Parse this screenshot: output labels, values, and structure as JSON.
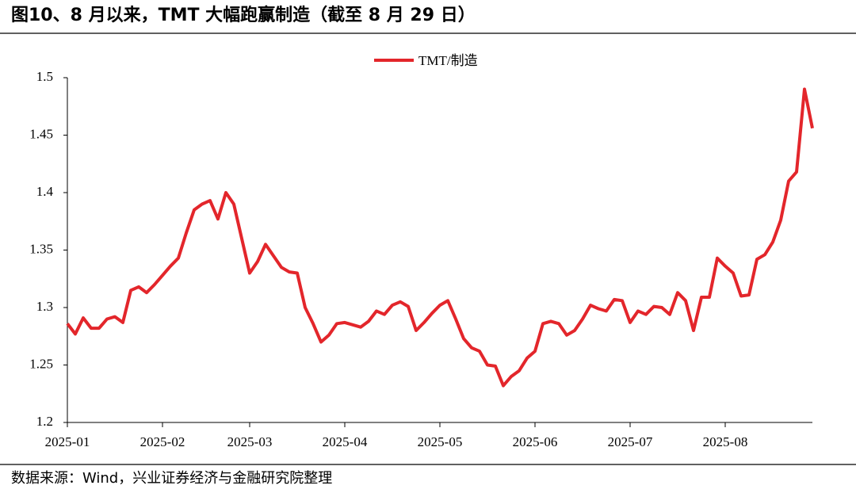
{
  "chart_data": {
    "type": "line",
    "title": "图10、8 月以来，TMT 大幅跑赢制造（截至 8 月 29 日）",
    "source": "数据来源：Wind，兴业证券经济与金融研究院整理",
    "categories": [
      "2025-01",
      null,
      null,
      null,
      null,
      null,
      null,
      null,
      null,
      null,
      null,
      null,
      "2025-02",
      null,
      null,
      null,
      null,
      null,
      null,
      null,
      null,
      null,
      null,
      "2025-03",
      null,
      null,
      null,
      null,
      null,
      null,
      null,
      null,
      null,
      null,
      null,
      "2025-04",
      null,
      null,
      null,
      null,
      null,
      null,
      null,
      null,
      null,
      null,
      null,
      "2025-05",
      null,
      null,
      null,
      null,
      null,
      null,
      null,
      null,
      null,
      null,
      null,
      "2025-06",
      null,
      null,
      null,
      null,
      null,
      null,
      null,
      null,
      null,
      null,
      null,
      "2025-07",
      null,
      null,
      null,
      null,
      null,
      null,
      null,
      null,
      null,
      null,
      null,
      "2025-08",
      null,
      null,
      null,
      null,
      null,
      null,
      null,
      null,
      null,
      null,
      null
    ],
    "series": [
      {
        "name": "TMT/制造",
        "color": "#e3262b",
        "values": [
          1.286,
          1.277,
          1.291,
          1.282,
          1.282,
          1.29,
          1.292,
          1.287,
          1.315,
          1.318,
          1.313,
          1.32,
          1.328,
          1.336,
          1.343,
          1.365,
          1.385,
          1.39,
          1.393,
          1.377,
          1.4,
          1.39,
          1.36,
          1.33,
          1.34,
          1.355,
          1.345,
          1.335,
          1.331,
          1.33,
          1.3,
          1.286,
          1.27,
          1.276,
          1.286,
          1.287,
          1.285,
          1.283,
          1.288,
          1.297,
          1.294,
          1.302,
          1.305,
          1.301,
          1.28,
          1.287,
          1.295,
          1.302,
          1.306,
          1.29,
          1.273,
          1.265,
          1.262,
          1.25,
          1.249,
          1.232,
          1.24,
          1.245,
          1.256,
          1.262,
          1.286,
          1.288,
          1.286,
          1.276,
          1.28,
          1.29,
          1.302,
          1.299,
          1.297,
          1.307,
          1.306,
          1.287,
          1.297,
          1.294,
          1.301,
          1.3,
          1.294,
          1.313,
          1.306,
          1.28,
          1.309,
          1.309,
          1.343,
          1.336,
          1.33,
          1.31,
          1.311,
          1.342,
          1.346,
          1.357,
          1.376,
          1.41,
          1.418,
          1.49,
          1.456
        ]
      }
    ],
    "ylim": [
      1.2,
      1.5
    ],
    "yticks": [
      1.2,
      1.25,
      1.3,
      1.35,
      1.4,
      1.45,
      1.5
    ],
    "legend": "top"
  }
}
